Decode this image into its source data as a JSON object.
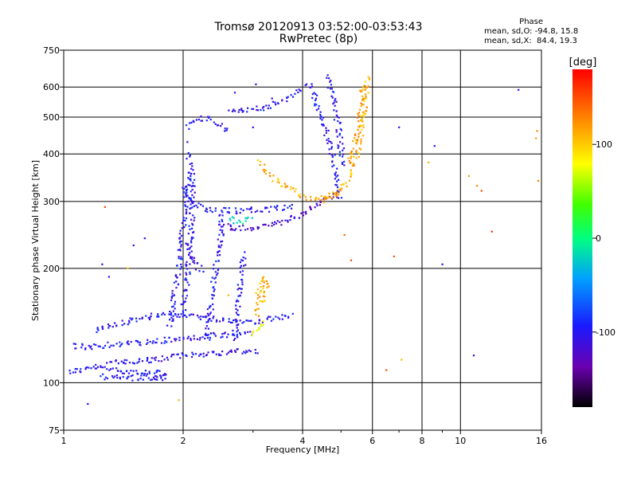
{
  "chart_data": {
    "type": "scatter",
    "title": "Tromsø 20120913 03:52:00-03:53:43",
    "subtitle": "RwPretec (8p)",
    "xlabel": "Frequency [MHz]",
    "ylabel": "Stationary phase Virtual Height [km]",
    "x_scale": "log",
    "y_scale": "log",
    "xlim": [
      1,
      16
    ],
    "ylim": [
      75,
      750
    ],
    "x_ticks": [
      1,
      2,
      4,
      6,
      8,
      10,
      16
    ],
    "x_tick_labels": [
      "1",
      "2",
      "4",
      "6",
      "8",
      "10",
      "16"
    ],
    "x_minor_ticks": [
      3,
      5,
      7,
      9
    ],
    "y_ticks": [
      75,
      100,
      200,
      300,
      400,
      500,
      600,
      750
    ],
    "y_tick_labels": [
      "75",
      "100",
      "200",
      "300",
      "400",
      "500",
      "600",
      "750"
    ],
    "grid": true,
    "phase_stats": {
      "heading": "Phase",
      "o_line": "mean, sd,O: -94.8, 15.8",
      "x_line": "mean, sd,X:  84.4, 19.3"
    },
    "colorbar": {
      "label": "[deg]",
      "range": [
        -180,
        180
      ],
      "ticks": [
        100,
        0,
        -100
      ],
      "tick_labels": [
        "100",
        "0",
        "-100"
      ]
    },
    "traces": [
      {
        "phase": -100,
        "points": [
          [
            1.03,
            107
          ],
          [
            1.1,
            108
          ],
          [
            1.2,
            110
          ],
          [
            1.35,
            108
          ],
          [
            1.5,
            107
          ],
          [
            1.65,
            106
          ],
          [
            1.8,
            106
          ]
        ]
      },
      {
        "phase": -100,
        "points": [
          [
            1.25,
            104
          ],
          [
            1.35,
            103
          ],
          [
            1.5,
            103
          ],
          [
            1.7,
            103
          ],
          [
            1.82,
            103
          ]
        ]
      },
      {
        "phase": -105,
        "points": [
          [
            1.3,
            114
          ],
          [
            1.45,
            113
          ],
          [
            1.6,
            114
          ],
          [
            1.8,
            116
          ],
          [
            2.0,
            118
          ],
          [
            2.2,
            119
          ],
          [
            2.5,
            120
          ],
          [
            2.8,
            121
          ],
          [
            3.1,
            121
          ]
        ]
      },
      {
        "phase": -100,
        "points": [
          [
            1.05,
            125
          ],
          [
            1.15,
            124
          ],
          [
            1.3,
            126
          ],
          [
            1.5,
            127
          ],
          [
            1.7,
            128
          ],
          [
            1.9,
            130
          ],
          [
            2.1,
            131
          ],
          [
            2.4,
            133
          ],
          [
            2.7,
            134
          ],
          [
            3.0,
            135
          ]
        ]
      },
      {
        "phase": -100,
        "points": [
          [
            1.2,
            138
          ],
          [
            1.35,
            142
          ],
          [
            1.5,
            147
          ],
          [
            1.7,
            150
          ],
          [
            1.9,
            152
          ],
          [
            2.1,
            150
          ],
          [
            2.3,
            148
          ],
          [
            2.6,
            146
          ],
          [
            3.0,
            145
          ],
          [
            3.5,
            148
          ],
          [
            3.8,
            150
          ]
        ]
      },
      {
        "phase": -100,
        "points": [
          [
            1.85,
            140
          ],
          [
            1.9,
            170
          ],
          [
            1.95,
            200
          ],
          [
            1.97,
            230
          ],
          [
            2.0,
            260
          ],
          [
            2.03,
            290
          ],
          [
            2.05,
            320
          ],
          [
            2.07,
            360
          ]
        ]
      },
      {
        "phase": -100,
        "points": [
          [
            2.0,
            150
          ],
          [
            2.05,
            190
          ],
          [
            2.08,
            230
          ],
          [
            2.1,
            270
          ],
          [
            2.12,
            310
          ],
          [
            2.1,
            350
          ],
          [
            2.05,
            400
          ]
        ]
      },
      {
        "phase": -100,
        "points": [
          [
            2.3,
            130
          ],
          [
            2.35,
            160
          ],
          [
            2.4,
            190
          ],
          [
            2.45,
            220
          ],
          [
            2.5,
            250
          ],
          [
            2.5,
            280
          ]
        ]
      },
      {
        "phase": -100,
        "points": [
          [
            2.7,
            130
          ],
          [
            2.75,
            160
          ],
          [
            2.8,
            190
          ],
          [
            2.85,
            220
          ]
        ]
      },
      {
        "phase": -100,
        "points": [
          [
            2.0,
            330
          ],
          [
            2.1,
            300
          ],
          [
            2.3,
            285
          ],
          [
            2.5,
            285
          ],
          [
            2.7,
            283
          ],
          [
            2.9,
            285
          ],
          [
            3.2,
            285
          ],
          [
            3.5,
            288
          ],
          [
            3.8,
            292
          ]
        ]
      },
      {
        "phase": -120,
        "points": [
          [
            2.5,
            262
          ],
          [
            2.7,
            256
          ],
          [
            3.0,
            256
          ],
          [
            3.3,
            260
          ],
          [
            3.6,
            266
          ],
          [
            3.9,
            276
          ],
          [
            4.2,
            290
          ],
          [
            4.5,
            300
          ],
          [
            4.8,
            315
          ]
        ]
      },
      {
        "phase": -100,
        "points": [
          [
            2.6,
            520
          ],
          [
            2.9,
            525
          ],
          [
            3.2,
            530
          ],
          [
            3.5,
            550
          ],
          [
            3.8,
            575
          ],
          [
            4.0,
            600
          ]
        ]
      },
      {
        "phase": -100,
        "points": [
          [
            2.05,
            470
          ],
          [
            2.15,
            490
          ],
          [
            2.3,
            500
          ],
          [
            2.45,
            480
          ],
          [
            2.6,
            460
          ]
        ]
      },
      {
        "phase": -100,
        "points": [
          [
            4.1,
            620
          ],
          [
            4.3,
            560
          ],
          [
            4.5,
            480
          ],
          [
            4.7,
            420
          ],
          [
            4.8,
            380
          ],
          [
            4.9,
            330
          ],
          [
            4.95,
            300
          ]
        ]
      },
      {
        "phase": -100,
        "points": [
          [
            4.6,
            640
          ],
          [
            4.75,
            580
          ],
          [
            4.85,
            520
          ],
          [
            4.95,
            460
          ],
          [
            5.0,
            410
          ],
          [
            5.05,
            370
          ]
        ]
      },
      {
        "phase": 110,
        "points": [
          [
            3.1,
            380
          ],
          [
            3.3,
            355
          ],
          [
            3.5,
            335
          ],
          [
            3.8,
            320
          ],
          [
            4.0,
            310
          ],
          [
            4.3,
            305
          ],
          [
            4.6,
            310
          ],
          [
            5.0,
            320
          ]
        ]
      },
      {
        "phase": 110,
        "points": [
          [
            4.5,
            300
          ],
          [
            4.8,
            310
          ],
          [
            5.1,
            330
          ],
          [
            5.3,
            360
          ],
          [
            5.5,
            400
          ],
          [
            5.6,
            450
          ],
          [
            5.7,
            520
          ],
          [
            5.8,
            600
          ],
          [
            5.9,
            640
          ]
        ]
      },
      {
        "phase": 120,
        "points": [
          [
            5.2,
            380
          ],
          [
            5.4,
            420
          ],
          [
            5.55,
            480
          ],
          [
            5.65,
            560
          ],
          [
            5.7,
            620
          ]
        ]
      },
      {
        "phase": 110,
        "points": [
          [
            3.05,
            150
          ],
          [
            3.1,
            170
          ],
          [
            3.2,
            190
          ],
          [
            3.25,
            180
          ],
          [
            3.15,
            160
          ]
        ]
      },
      {
        "phase": 80,
        "points": [
          [
            3.0,
            135
          ],
          [
            3.1,
            140
          ],
          [
            3.2,
            145
          ]
        ]
      },
      {
        "phase": -100,
        "points": [
          [
            1.7,
            103
          ],
          [
            1.8,
            104
          ],
          [
            1.85,
            105
          ]
        ]
      },
      {
        "phase": -20,
        "points": [
          [
            2.6,
            270
          ],
          [
            2.8,
            265
          ],
          [
            3.0,
            270
          ]
        ]
      },
      {
        "phase": -110,
        "points": [
          [
            2.05,
            230
          ],
          [
            2.1,
            215
          ],
          [
            2.15,
            205
          ],
          [
            2.2,
            200
          ],
          [
            2.25,
            195
          ]
        ]
      }
    ],
    "scattered_points": [
      {
        "x": 1.15,
        "y": 88,
        "phase": -100
      },
      {
        "x": 1.3,
        "y": 190,
        "phase": -100
      },
      {
        "x": 1.25,
        "y": 205,
        "phase": -100
      },
      {
        "x": 1.27,
        "y": 290,
        "phase": 150
      },
      {
        "x": 1.45,
        "y": 200,
        "phase": 100
      },
      {
        "x": 1.5,
        "y": 230,
        "phase": -100
      },
      {
        "x": 1.6,
        "y": 240,
        "phase": -100
      },
      {
        "x": 1.95,
        "y": 90,
        "phase": 110
      },
      {
        "x": 2.05,
        "y": 430,
        "phase": -100
      },
      {
        "x": 2.7,
        "y": 580,
        "phase": -100
      },
      {
        "x": 3.0,
        "y": 470,
        "phase": -100
      },
      {
        "x": 3.35,
        "y": 560,
        "phase": -100
      },
      {
        "x": 3.05,
        "y": 610,
        "phase": -100
      },
      {
        "x": 5.1,
        "y": 245,
        "phase": 140
      },
      {
        "x": 5.3,
        "y": 210,
        "phase": 150
      },
      {
        "x": 6.5,
        "y": 108,
        "phase": 150
      },
      {
        "x": 6.8,
        "y": 215,
        "phase": 150
      },
      {
        "x": 7.0,
        "y": 470,
        "phase": -100
      },
      {
        "x": 7.1,
        "y": 115,
        "phase": 110
      },
      {
        "x": 8.6,
        "y": 420,
        "phase": -100
      },
      {
        "x": 8.3,
        "y": 380,
        "phase": 110
      },
      {
        "x": 9.0,
        "y": 205,
        "phase": -100
      },
      {
        "x": 10.5,
        "y": 350,
        "phase": 120
      },
      {
        "x": 11.0,
        "y": 330,
        "phase": 130
      },
      {
        "x": 11.3,
        "y": 320,
        "phase": 150
      },
      {
        "x": 10.8,
        "y": 118,
        "phase": -100
      },
      {
        "x": 12.0,
        "y": 250,
        "phase": 160
      },
      {
        "x": 14.0,
        "y": 590,
        "phase": -100
      },
      {
        "x": 15.5,
        "y": 440,
        "phase": 120
      },
      {
        "x": 15.6,
        "y": 460,
        "phase": 130
      },
      {
        "x": 15.7,
        "y": 340,
        "phase": 130
      },
      {
        "x": 2.6,
        "y": 170,
        "phase": 110
      }
    ]
  }
}
